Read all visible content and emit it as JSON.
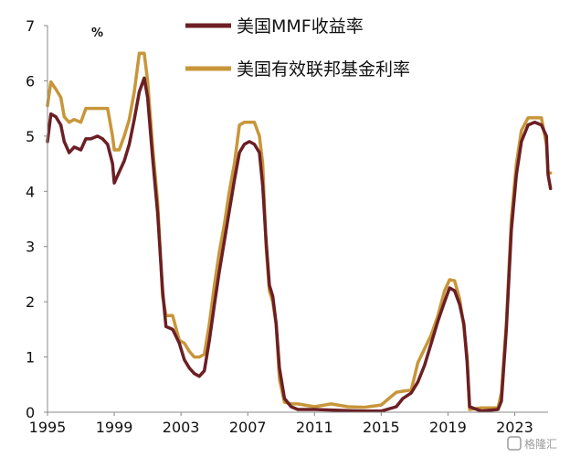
{
  "chart_data": {
    "type": "line",
    "unit": "%",
    "ylim": [
      0,
      7
    ],
    "xlim": [
      1995,
      2025
    ],
    "x_ticks": [
      "1995",
      "1999",
      "2003",
      "2007",
      "2011",
      "2015",
      "2019",
      "2023"
    ],
    "y_ticks": [
      "0",
      "1",
      "2",
      "3",
      "4",
      "5",
      "6",
      "7"
    ],
    "legend_position": "top-center",
    "series": [
      {
        "name": "美国MMF收益率",
        "color": "#6b1f24",
        "points": [
          [
            1995.0,
            4.9
          ],
          [
            1995.2,
            5.4
          ],
          [
            1995.5,
            5.35
          ],
          [
            1995.8,
            5.2
          ],
          [
            1996.0,
            4.9
          ],
          [
            1996.3,
            4.7
          ],
          [
            1996.6,
            4.8
          ],
          [
            1997.0,
            4.75
          ],
          [
            1997.3,
            4.95
          ],
          [
            1997.6,
            4.95
          ],
          [
            1998.0,
            5.0
          ],
          [
            1998.3,
            4.95
          ],
          [
            1998.6,
            4.85
          ],
          [
            1998.9,
            4.5
          ],
          [
            1999.0,
            4.15
          ],
          [
            1999.3,
            4.35
          ],
          [
            1999.6,
            4.55
          ],
          [
            1999.9,
            4.85
          ],
          [
            2000.2,
            5.3
          ],
          [
            2000.5,
            5.8
          ],
          [
            2000.8,
            6.05
          ],
          [
            2001.0,
            5.7
          ],
          [
            2001.3,
            4.6
          ],
          [
            2001.6,
            3.6
          ],
          [
            2001.9,
            2.2
          ],
          [
            2002.1,
            1.55
          ],
          [
            2002.5,
            1.5
          ],
          [
            2002.9,
            1.25
          ],
          [
            2003.2,
            0.95
          ],
          [
            2003.5,
            0.8
          ],
          [
            2003.8,
            0.7
          ],
          [
            2004.1,
            0.65
          ],
          [
            2004.4,
            0.75
          ],
          [
            2004.7,
            1.3
          ],
          [
            2005.0,
            1.95
          ],
          [
            2005.3,
            2.55
          ],
          [
            2005.6,
            3.1
          ],
          [
            2005.9,
            3.65
          ],
          [
            2006.2,
            4.2
          ],
          [
            2006.5,
            4.7
          ],
          [
            2006.8,
            4.85
          ],
          [
            2007.1,
            4.9
          ],
          [
            2007.4,
            4.85
          ],
          [
            2007.7,
            4.7
          ],
          [
            2007.9,
            4.1
          ],
          [
            2008.1,
            3.1
          ],
          [
            2008.3,
            2.3
          ],
          [
            2008.5,
            2.1
          ],
          [
            2008.7,
            1.6
          ],
          [
            2008.9,
            0.8
          ],
          [
            2009.2,
            0.25
          ],
          [
            2009.6,
            0.1
          ],
          [
            2010.0,
            0.05
          ],
          [
            2011.0,
            0.05
          ],
          [
            2012.0,
            0.04
          ],
          [
            2013.0,
            0.03
          ],
          [
            2014.0,
            0.02
          ],
          [
            2015.0,
            0.02
          ],
          [
            2015.9,
            0.1
          ],
          [
            2016.3,
            0.25
          ],
          [
            2016.8,
            0.35
          ],
          [
            2017.2,
            0.55
          ],
          [
            2017.6,
            0.85
          ],
          [
            2018.0,
            1.25
          ],
          [
            2018.4,
            1.65
          ],
          [
            2018.8,
            2.0
          ],
          [
            2019.1,
            2.25
          ],
          [
            2019.4,
            2.2
          ],
          [
            2019.7,
            1.95
          ],
          [
            2019.95,
            1.6
          ],
          [
            2020.15,
            0.9
          ],
          [
            2020.3,
            0.1
          ],
          [
            2021.0,
            0.02
          ],
          [
            2022.0,
            0.05
          ],
          [
            2022.2,
            0.2
          ],
          [
            2022.5,
            1.5
          ],
          [
            2022.8,
            3.3
          ],
          [
            2023.1,
            4.3
          ],
          [
            2023.4,
            4.9
          ],
          [
            2023.8,
            5.2
          ],
          [
            2024.2,
            5.25
          ],
          [
            2024.6,
            5.2
          ],
          [
            2024.9,
            5.0
          ],
          [
            2025.0,
            4.3
          ],
          [
            2025.15,
            4.05
          ]
        ]
      },
      {
        "name": "美国有效联邦基金利率",
        "color": "#c8963a",
        "points": [
          [
            1995.0,
            5.55
          ],
          [
            1995.2,
            5.98
          ],
          [
            1995.5,
            5.85
          ],
          [
            1995.8,
            5.7
          ],
          [
            1996.0,
            5.35
          ],
          [
            1996.3,
            5.25
          ],
          [
            1996.6,
            5.3
          ],
          [
            1997.0,
            5.25
          ],
          [
            1997.3,
            5.5
          ],
          [
            1997.6,
            5.5
          ],
          [
            1998.0,
            5.5
          ],
          [
            1998.3,
            5.5
          ],
          [
            1998.6,
            5.5
          ],
          [
            1998.9,
            5.0
          ],
          [
            1999.0,
            4.75
          ],
          [
            1999.3,
            4.75
          ],
          [
            1999.6,
            5.0
          ],
          [
            1999.9,
            5.3
          ],
          [
            2000.2,
            5.8
          ],
          [
            2000.5,
            6.5
          ],
          [
            2000.8,
            6.5
          ],
          [
            2001.0,
            6.0
          ],
          [
            2001.3,
            4.8
          ],
          [
            2001.6,
            3.8
          ],
          [
            2001.9,
            2.1
          ],
          [
            2002.1,
            1.75
          ],
          [
            2002.5,
            1.75
          ],
          [
            2002.9,
            1.3
          ],
          [
            2003.2,
            1.25
          ],
          [
            2003.5,
            1.1
          ],
          [
            2003.8,
            1.0
          ],
          [
            2004.1,
            1.0
          ],
          [
            2004.4,
            1.05
          ],
          [
            2004.7,
            1.6
          ],
          [
            2005.0,
            2.3
          ],
          [
            2005.3,
            2.9
          ],
          [
            2005.6,
            3.4
          ],
          [
            2005.9,
            4.0
          ],
          [
            2006.2,
            4.5
          ],
          [
            2006.5,
            5.2
          ],
          [
            2006.8,
            5.25
          ],
          [
            2007.1,
            5.25
          ],
          [
            2007.4,
            5.25
          ],
          [
            2007.7,
            5.0
          ],
          [
            2007.9,
            4.5
          ],
          [
            2008.1,
            3.0
          ],
          [
            2008.3,
            2.2
          ],
          [
            2008.5,
            2.0
          ],
          [
            2008.7,
            1.6
          ],
          [
            2008.9,
            0.6
          ],
          [
            2009.2,
            0.18
          ],
          [
            2009.6,
            0.15
          ],
          [
            2010.0,
            0.15
          ],
          [
            2011.0,
            0.1
          ],
          [
            2012.0,
            0.15
          ],
          [
            2013.0,
            0.1
          ],
          [
            2014.0,
            0.09
          ],
          [
            2015.0,
            0.13
          ],
          [
            2015.9,
            0.36
          ],
          [
            2016.3,
            0.38
          ],
          [
            2016.8,
            0.4
          ],
          [
            2017.2,
            0.9
          ],
          [
            2017.6,
            1.15
          ],
          [
            2018.0,
            1.4
          ],
          [
            2018.4,
            1.75
          ],
          [
            2018.8,
            2.2
          ],
          [
            2019.1,
            2.4
          ],
          [
            2019.4,
            2.38
          ],
          [
            2019.7,
            2.05
          ],
          [
            2019.95,
            1.55
          ],
          [
            2020.15,
            1.0
          ],
          [
            2020.3,
            0.05
          ],
          [
            2021.0,
            0.08
          ],
          [
            2022.0,
            0.08
          ],
          [
            2022.2,
            0.35
          ],
          [
            2022.5,
            1.6
          ],
          [
            2022.8,
            3.5
          ],
          [
            2023.1,
            4.5
          ],
          [
            2023.4,
            5.1
          ],
          [
            2023.8,
            5.33
          ],
          [
            2024.2,
            5.33
          ],
          [
            2024.6,
            5.33
          ],
          [
            2024.9,
            4.85
          ],
          [
            2025.0,
            4.33
          ],
          [
            2025.15,
            4.33
          ]
        ]
      }
    ]
  },
  "watermark": "格隆汇"
}
